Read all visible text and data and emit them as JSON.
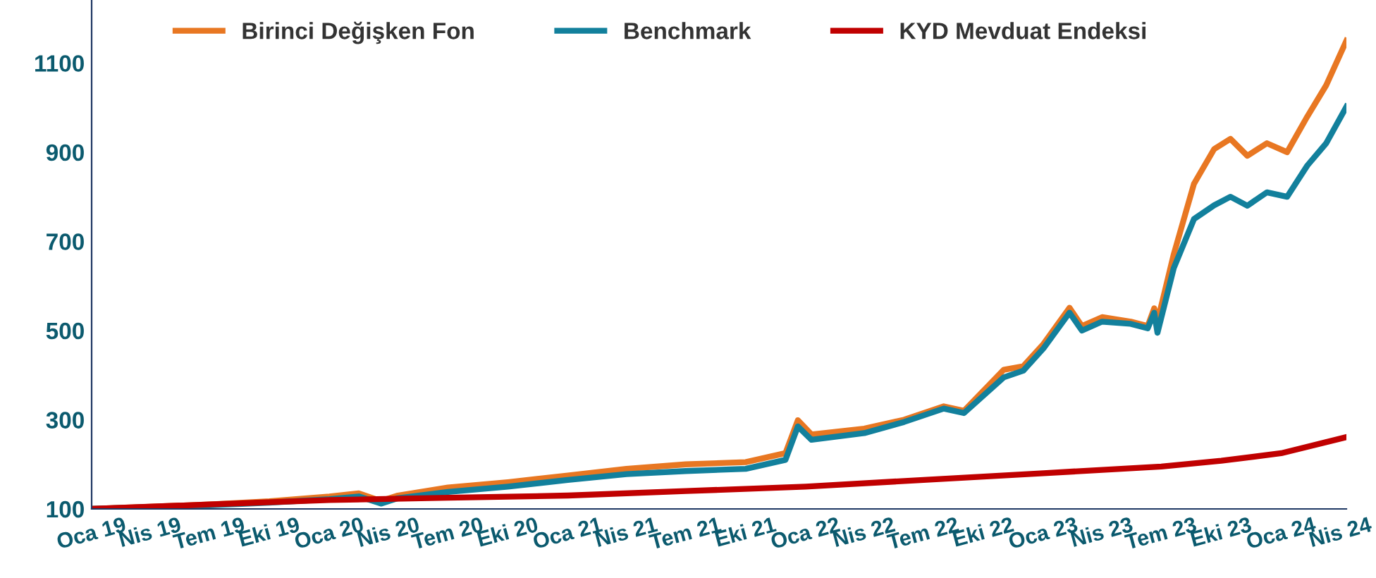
{
  "chart_data": {
    "type": "line",
    "legend": "top left",
    "grid": false,
    "line_style": "solid",
    "marker": "none",
    "ylim": [
      100,
      1240
    ],
    "yticks": [
      100,
      300,
      500,
      700,
      900,
      1100
    ],
    "xlim": [
      "2019-01-01",
      "2024-04-10"
    ],
    "xticks": [
      {
        "value": "2019-01-01",
        "label": "Oca 19"
      },
      {
        "value": "2019-04-01",
        "label": "Nis 19"
      },
      {
        "value": "2019-07-01",
        "label": "Tem 19"
      },
      {
        "value": "2019-10-01",
        "label": "Eki 19"
      },
      {
        "value": "2020-01-01",
        "label": "Oca 20"
      },
      {
        "value": "2020-04-01",
        "label": "Nis 20"
      },
      {
        "value": "2020-07-01",
        "label": "Tem 20"
      },
      {
        "value": "2020-10-01",
        "label": "Eki 20"
      },
      {
        "value": "2021-01-01",
        "label": "Oca 21"
      },
      {
        "value": "2021-04-01",
        "label": "Nis 21"
      },
      {
        "value": "2021-07-01",
        "label": "Tem 21"
      },
      {
        "value": "2021-10-01",
        "label": "Eki 21"
      },
      {
        "value": "2022-01-01",
        "label": "Oca 22"
      },
      {
        "value": "2022-04-01",
        "label": "Nis 22"
      },
      {
        "value": "2022-07-01",
        "label": "Tem 22"
      },
      {
        "value": "2022-10-01",
        "label": "Eki 22"
      },
      {
        "value": "2023-01-01",
        "label": "Oca 23"
      },
      {
        "value": "2023-04-01",
        "label": "Nis 23"
      },
      {
        "value": "2023-07-01",
        "label": "Tem 23"
      },
      {
        "value": "2023-10-01",
        "label": "Eki 23"
      },
      {
        "value": "2024-01-01",
        "label": "Oca 24"
      },
      {
        "value": "2024-04-01",
        "label": "Nis 24"
      }
    ],
    "series": [
      {
        "name": "Birinci Değişken Fon",
        "color": "#e87722",
        "x": [
          "2019-01-01",
          "2019-04-01",
          "2019-07-01",
          "2019-10-01",
          "2020-01-01",
          "2020-02-15",
          "2020-03-20",
          "2020-04-15",
          "2020-07-01",
          "2020-10-01",
          "2021-01-01",
          "2021-04-01",
          "2021-07-01",
          "2021-10-01",
          "2021-12-01",
          "2021-12-20",
          "2022-01-10",
          "2022-04-01",
          "2022-06-01",
          "2022-08-01",
          "2022-09-01",
          "2022-11-01",
          "2022-12-01",
          "2023-01-01",
          "2023-02-10",
          "2023-03-01",
          "2023-04-01",
          "2023-05-15",
          "2023-06-10",
          "2023-06-20",
          "2023-06-25",
          "2023-07-20",
          "2023-08-20",
          "2023-09-20",
          "2023-10-15",
          "2023-11-10",
          "2023-12-10",
          "2024-01-10",
          "2024-02-10",
          "2024-03-10",
          "2024-04-10"
        ],
        "values": [
          100,
          105,
          110,
          117,
          128,
          135,
          118,
          130,
          148,
          160,
          175,
          190,
          200,
          205,
          225,
          299,
          267,
          280,
          300,
          330,
          320,
          412,
          420,
          470,
          551,
          510,
          530,
          520,
          510,
          550,
          520,
          671,
          829,
          907,
          930,
          892,
          920,
          900,
          980,
          1050,
          1150
        ]
      },
      {
        "name": "Benchmark",
        "color": "#12809c",
        "x": [
          "2019-01-01",
          "2019-04-01",
          "2019-07-01",
          "2019-10-01",
          "2020-01-01",
          "2020-02-15",
          "2020-03-20",
          "2020-04-15",
          "2020-07-01",
          "2020-10-01",
          "2021-01-01",
          "2021-04-01",
          "2021-07-01",
          "2021-10-01",
          "2021-12-01",
          "2021-12-20",
          "2022-01-10",
          "2022-04-01",
          "2022-06-01",
          "2022-08-01",
          "2022-09-01",
          "2022-11-01",
          "2022-12-01",
          "2023-01-01",
          "2023-02-10",
          "2023-03-01",
          "2023-04-01",
          "2023-05-15",
          "2023-06-10",
          "2023-06-20",
          "2023-06-25",
          "2023-07-20",
          "2023-08-20",
          "2023-09-20",
          "2023-10-15",
          "2023-11-10",
          "2023-12-10",
          "2024-01-10",
          "2024-02-10",
          "2024-03-10",
          "2024-04-10"
        ],
        "values": [
          100,
          104,
          108,
          114,
          122,
          128,
          112,
          124,
          138,
          150,
          165,
          178,
          185,
          190,
          210,
          285,
          255,
          270,
          295,
          325,
          315,
          395,
          410,
          460,
          540,
          500,
          520,
          515,
          505,
          540,
          495,
          640,
          750,
          781,
          800,
          780,
          810,
          800,
          870,
          920,
          1002
        ]
      },
      {
        "name": "KYD Mevduat Endeksi",
        "color": "#c00000",
        "x": [
          "2019-01-01",
          "2019-07-01",
          "2020-01-01",
          "2020-07-01",
          "2021-01-01",
          "2021-07-01",
          "2022-01-01",
          "2022-07-01",
          "2023-01-01",
          "2023-07-01",
          "2023-10-01",
          "2024-01-01",
          "2024-04-10"
        ],
        "values": [
          100,
          110,
          120,
          125,
          130,
          140,
          150,
          165,
          180,
          195,
          208,
          225,
          261
        ]
      }
    ]
  }
}
